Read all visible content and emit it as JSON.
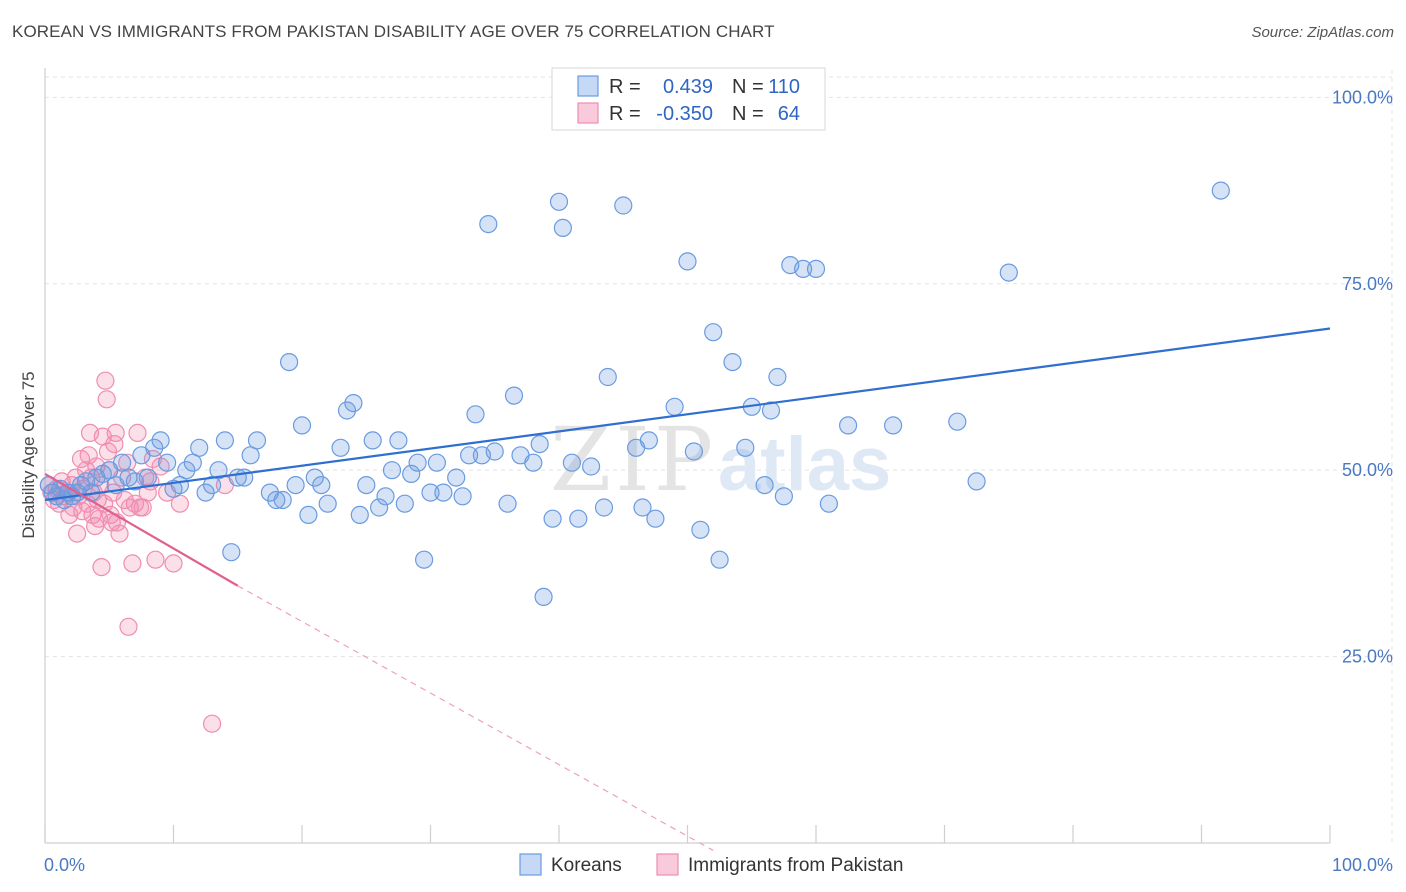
{
  "title": "KOREAN VS IMMIGRANTS FROM PAKISTAN DISABILITY AGE OVER 75 CORRELATION CHART",
  "source": "Source: ZipAtlas.com",
  "watermark": {
    "zip": "ZIP",
    "atlas": "atlas"
  },
  "colors": {
    "blue": "#6a9be0",
    "blue_line": "#2f6fd0",
    "pink": "#f08db0",
    "pink_line": "#e06090"
  },
  "chart_data": {
    "type": "scatter",
    "title": "KOREAN VS IMMIGRANTS FROM PAKISTAN DISABILITY AGE OVER 75 CORRELATION CHART",
    "xlabel": "",
    "ylabel": "Disability Age Over 75",
    "xlim": [
      0,
      100
    ],
    "ylim": [
      0,
      103
    ],
    "x_tick_labels": [
      "0.0%",
      "100.0%"
    ],
    "y_ticks": [
      {
        "value": 25,
        "label": "25.0%"
      },
      {
        "value": 50,
        "label": "50.0%"
      },
      {
        "value": 75,
        "label": "75.0%"
      },
      {
        "value": 100,
        "label": "100.0%"
      }
    ],
    "grid": true,
    "legend": {
      "position": "top-center",
      "rows": [
        {
          "r_label": "R =",
          "r_value": "0.439",
          "n_label": "N =",
          "n_value": "110"
        },
        {
          "r_label": "R =",
          "r_value": "-0.350",
          "n_label": "N =",
          "n_value": "64"
        }
      ]
    },
    "series": [
      {
        "name": "Koreans",
        "trend": {
          "x": [
            0,
            100
          ],
          "y": [
            46.0,
            69.0
          ],
          "style": "solid"
        },
        "points": [
          [
            0.3,
            48
          ],
          [
            0.6,
            47
          ],
          [
            0.9,
            46.5
          ],
          [
            1.2,
            47.5
          ],
          [
            1.5,
            46
          ],
          [
            1.8,
            47
          ],
          [
            2.1,
            46.5
          ],
          [
            2.5,
            47
          ],
          [
            2.8,
            48
          ],
          [
            3.2,
            48.5
          ],
          [
            3.6,
            47
          ],
          [
            4,
            49
          ],
          [
            4.5,
            49.5
          ],
          [
            5,
            50
          ],
          [
            5.5,
            48
          ],
          [
            6,
            51
          ],
          [
            6.5,
            49
          ],
          [
            7,
            48.5
          ],
          [
            7.5,
            52
          ],
          [
            8,
            49
          ],
          [
            8.5,
            53
          ],
          [
            9,
            54
          ],
          [
            9.5,
            51
          ],
          [
            10,
            47.5
          ],
          [
            10.5,
            48
          ],
          [
            11,
            50
          ],
          [
            11.5,
            51
          ],
          [
            12,
            53
          ],
          [
            12.5,
            47
          ],
          [
            13,
            48
          ],
          [
            13.5,
            50
          ],
          [
            14,
            54
          ],
          [
            14.5,
            39
          ],
          [
            15,
            49
          ],
          [
            15.5,
            49
          ],
          [
            16,
            52
          ],
          [
            16.5,
            54
          ],
          [
            17.5,
            47
          ],
          [
            18,
            46
          ],
          [
            18.5,
            46
          ],
          [
            19,
            64.5
          ],
          [
            19.5,
            48
          ],
          [
            20,
            56
          ],
          [
            20.5,
            44
          ],
          [
            21,
            49
          ],
          [
            21.5,
            48
          ],
          [
            22,
            45.5
          ],
          [
            23,
            53
          ],
          [
            23.5,
            58
          ],
          [
            24,
            59
          ],
          [
            24.5,
            44
          ],
          [
            25,
            48
          ],
          [
            25.5,
            54
          ],
          [
            26,
            45
          ],
          [
            26.5,
            46.5
          ],
          [
            27,
            50
          ],
          [
            27.5,
            54
          ],
          [
            28,
            45.5
          ],
          [
            28.5,
            49.5
          ],
          [
            29,
            51
          ],
          [
            29.5,
            38
          ],
          [
            30,
            47
          ],
          [
            30.5,
            51
          ],
          [
            31,
            47
          ],
          [
            32,
            49
          ],
          [
            32.5,
            46.5
          ],
          [
            33,
            52
          ],
          [
            33.5,
            57.5
          ],
          [
            34,
            52
          ],
          [
            34.5,
            83
          ],
          [
            35,
            52.5
          ],
          [
            36,
            45.5
          ],
          [
            36.5,
            60
          ],
          [
            37,
            52
          ],
          [
            38,
            51
          ],
          [
            38.5,
            53.5
          ],
          [
            38.8,
            33
          ],
          [
            39.5,
            43.5
          ],
          [
            40,
            86
          ],
          [
            40.3,
            82.5
          ],
          [
            41,
            51
          ],
          [
            41.5,
            43.5
          ],
          [
            42.5,
            50.5
          ],
          [
            43.5,
            45
          ],
          [
            43.8,
            62.5
          ],
          [
            45,
            85.5
          ],
          [
            46,
            53
          ],
          [
            46.5,
            45
          ],
          [
            47,
            54
          ],
          [
            47.5,
            43.5
          ],
          [
            49,
            58.5
          ],
          [
            50,
            78
          ],
          [
            50.5,
            52.5
          ],
          [
            51,
            42
          ],
          [
            52,
            68.5
          ],
          [
            52.5,
            38
          ],
          [
            53.5,
            64.5
          ],
          [
            54.5,
            53
          ],
          [
            55,
            58.5
          ],
          [
            56,
            48
          ],
          [
            56.5,
            58
          ],
          [
            57,
            62.5
          ],
          [
            57.5,
            46.5
          ],
          [
            58,
            77.5
          ],
          [
            59,
            77
          ],
          [
            60,
            77
          ],
          [
            61,
            45.5
          ],
          [
            62.5,
            56
          ],
          [
            66,
            56
          ],
          [
            71,
            56.5
          ],
          [
            72.5,
            48.5
          ],
          [
            75,
            76.5
          ],
          [
            91.5,
            87.5
          ]
        ]
      },
      {
        "name": "Immigrants from Pakistan",
        "trend": {
          "x": [
            0,
            15
          ],
          "y": [
            49.5,
            34.5
          ],
          "style": "solid",
          "extension": {
            "x": [
              15,
              52
            ],
            "y": [
              34.5,
              -1
            ],
            "style": "dashed"
          }
        },
        "points": [
          [
            0.3,
            48
          ],
          [
            0.5,
            47
          ],
          [
            0.7,
            46
          ],
          [
            0.9,
            47.5
          ],
          [
            1.1,
            45.5
          ],
          [
            1.3,
            48.5
          ],
          [
            1.5,
            46.5
          ],
          [
            1.7,
            47
          ],
          [
            1.9,
            44
          ],
          [
            2.1,
            48
          ],
          [
            2.2,
            45
          ],
          [
            2.4,
            49
          ],
          [
            2.5,
            41.5
          ],
          [
            2.6,
            46.5
          ],
          [
            2.8,
            51.5
          ],
          [
            2.9,
            44.5
          ],
          [
            3,
            47.5
          ],
          [
            3.2,
            50
          ],
          [
            3.3,
            45.5
          ],
          [
            3.4,
            52
          ],
          [
            3.5,
            55
          ],
          [
            3.6,
            49
          ],
          [
            3.7,
            44
          ],
          [
            3.8,
            47
          ],
          [
            3.9,
            42.5
          ],
          [
            4,
            50.5
          ],
          [
            4.1,
            46
          ],
          [
            4.2,
            43.5
          ],
          [
            4.3,
            48
          ],
          [
            4.4,
            37
          ],
          [
            4.5,
            54.5
          ],
          [
            4.6,
            45.5
          ],
          [
            4.7,
            62
          ],
          [
            4.8,
            59.5
          ],
          [
            4.9,
            52.5
          ],
          [
            5,
            50
          ],
          [
            5.1,
            44
          ],
          [
            5.2,
            43
          ],
          [
            5.3,
            47
          ],
          [
            5.4,
            53.5
          ],
          [
            5.5,
            55
          ],
          [
            5.6,
            43
          ],
          [
            5.8,
            41.5
          ],
          [
            6,
            49
          ],
          [
            6.2,
            46
          ],
          [
            6.4,
            51
          ],
          [
            6.5,
            29
          ],
          [
            6.6,
            45
          ],
          [
            6.8,
            37.5
          ],
          [
            7,
            45.5
          ],
          [
            7.2,
            55
          ],
          [
            7.4,
            45
          ],
          [
            7.6,
            45
          ],
          [
            7.8,
            49
          ],
          [
            8,
            47
          ],
          [
            8.2,
            48.5
          ],
          [
            8.4,
            51.5
          ],
          [
            8.6,
            38
          ],
          [
            9,
            50.5
          ],
          [
            9.5,
            47
          ],
          [
            10,
            37.5
          ],
          [
            10.5,
            45.5
          ],
          [
            13,
            16
          ],
          [
            14,
            48
          ]
        ]
      }
    ]
  }
}
